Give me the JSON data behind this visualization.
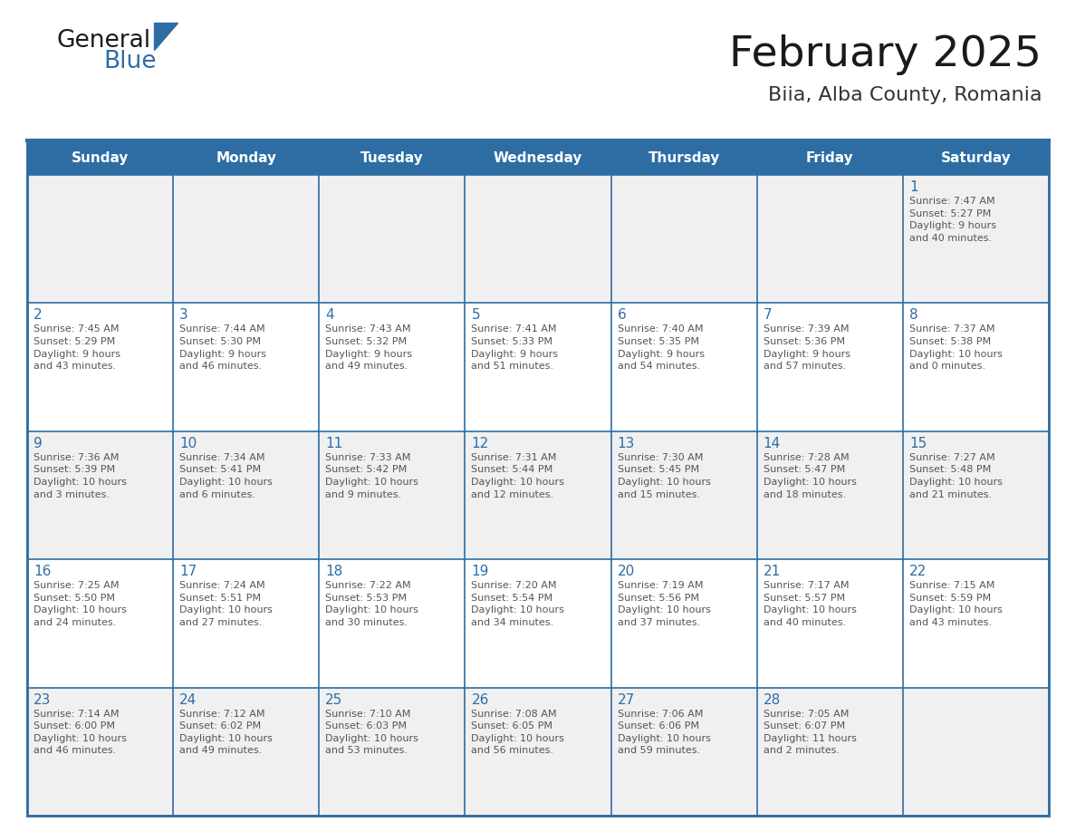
{
  "title": "February 2025",
  "subtitle": "Biia, Alba County, Romania",
  "header_bg": "#2e6da4",
  "header_text": "#ffffff",
  "cell_bg_row1": "#f0f0f0",
  "cell_bg_white": "#ffffff",
  "border_color": "#2e6da4",
  "text_color": "#555555",
  "day_number_color": "#2e6da4",
  "days_of_week": [
    "Sunday",
    "Monday",
    "Tuesday",
    "Wednesday",
    "Thursday",
    "Friday",
    "Saturday"
  ],
  "weeks": [
    [
      {
        "day": "",
        "info": ""
      },
      {
        "day": "",
        "info": ""
      },
      {
        "day": "",
        "info": ""
      },
      {
        "day": "",
        "info": ""
      },
      {
        "day": "",
        "info": ""
      },
      {
        "day": "",
        "info": ""
      },
      {
        "day": "1",
        "info": "Sunrise: 7:47 AM\nSunset: 5:27 PM\nDaylight: 9 hours\nand 40 minutes."
      }
    ],
    [
      {
        "day": "2",
        "info": "Sunrise: 7:45 AM\nSunset: 5:29 PM\nDaylight: 9 hours\nand 43 minutes."
      },
      {
        "day": "3",
        "info": "Sunrise: 7:44 AM\nSunset: 5:30 PM\nDaylight: 9 hours\nand 46 minutes."
      },
      {
        "day": "4",
        "info": "Sunrise: 7:43 AM\nSunset: 5:32 PM\nDaylight: 9 hours\nand 49 minutes."
      },
      {
        "day": "5",
        "info": "Sunrise: 7:41 AM\nSunset: 5:33 PM\nDaylight: 9 hours\nand 51 minutes."
      },
      {
        "day": "6",
        "info": "Sunrise: 7:40 AM\nSunset: 5:35 PM\nDaylight: 9 hours\nand 54 minutes."
      },
      {
        "day": "7",
        "info": "Sunrise: 7:39 AM\nSunset: 5:36 PM\nDaylight: 9 hours\nand 57 minutes."
      },
      {
        "day": "8",
        "info": "Sunrise: 7:37 AM\nSunset: 5:38 PM\nDaylight: 10 hours\nand 0 minutes."
      }
    ],
    [
      {
        "day": "9",
        "info": "Sunrise: 7:36 AM\nSunset: 5:39 PM\nDaylight: 10 hours\nand 3 minutes."
      },
      {
        "day": "10",
        "info": "Sunrise: 7:34 AM\nSunset: 5:41 PM\nDaylight: 10 hours\nand 6 minutes."
      },
      {
        "day": "11",
        "info": "Sunrise: 7:33 AM\nSunset: 5:42 PM\nDaylight: 10 hours\nand 9 minutes."
      },
      {
        "day": "12",
        "info": "Sunrise: 7:31 AM\nSunset: 5:44 PM\nDaylight: 10 hours\nand 12 minutes."
      },
      {
        "day": "13",
        "info": "Sunrise: 7:30 AM\nSunset: 5:45 PM\nDaylight: 10 hours\nand 15 minutes."
      },
      {
        "day": "14",
        "info": "Sunrise: 7:28 AM\nSunset: 5:47 PM\nDaylight: 10 hours\nand 18 minutes."
      },
      {
        "day": "15",
        "info": "Sunrise: 7:27 AM\nSunset: 5:48 PM\nDaylight: 10 hours\nand 21 minutes."
      }
    ],
    [
      {
        "day": "16",
        "info": "Sunrise: 7:25 AM\nSunset: 5:50 PM\nDaylight: 10 hours\nand 24 minutes."
      },
      {
        "day": "17",
        "info": "Sunrise: 7:24 AM\nSunset: 5:51 PM\nDaylight: 10 hours\nand 27 minutes."
      },
      {
        "day": "18",
        "info": "Sunrise: 7:22 AM\nSunset: 5:53 PM\nDaylight: 10 hours\nand 30 minutes."
      },
      {
        "day": "19",
        "info": "Sunrise: 7:20 AM\nSunset: 5:54 PM\nDaylight: 10 hours\nand 34 minutes."
      },
      {
        "day": "20",
        "info": "Sunrise: 7:19 AM\nSunset: 5:56 PM\nDaylight: 10 hours\nand 37 minutes."
      },
      {
        "day": "21",
        "info": "Sunrise: 7:17 AM\nSunset: 5:57 PM\nDaylight: 10 hours\nand 40 minutes."
      },
      {
        "day": "22",
        "info": "Sunrise: 7:15 AM\nSunset: 5:59 PM\nDaylight: 10 hours\nand 43 minutes."
      }
    ],
    [
      {
        "day": "23",
        "info": "Sunrise: 7:14 AM\nSunset: 6:00 PM\nDaylight: 10 hours\nand 46 minutes."
      },
      {
        "day": "24",
        "info": "Sunrise: 7:12 AM\nSunset: 6:02 PM\nDaylight: 10 hours\nand 49 minutes."
      },
      {
        "day": "25",
        "info": "Sunrise: 7:10 AM\nSunset: 6:03 PM\nDaylight: 10 hours\nand 53 minutes."
      },
      {
        "day": "26",
        "info": "Sunrise: 7:08 AM\nSunset: 6:05 PM\nDaylight: 10 hours\nand 56 minutes."
      },
      {
        "day": "27",
        "info": "Sunrise: 7:06 AM\nSunset: 6:06 PM\nDaylight: 10 hours\nand 59 minutes."
      },
      {
        "day": "28",
        "info": "Sunrise: 7:05 AM\nSunset: 6:07 PM\nDaylight: 11 hours\nand 2 minutes."
      },
      {
        "day": "",
        "info": ""
      }
    ]
  ],
  "logo_color_general": "#1a1a1a",
  "logo_color_blue": "#2e6da4",
  "logo_triangle_color": "#2e6da4",
  "title_fontsize": 34,
  "subtitle_fontsize": 16,
  "header_fontsize": 11,
  "day_num_fontsize": 11,
  "info_fontsize": 8
}
